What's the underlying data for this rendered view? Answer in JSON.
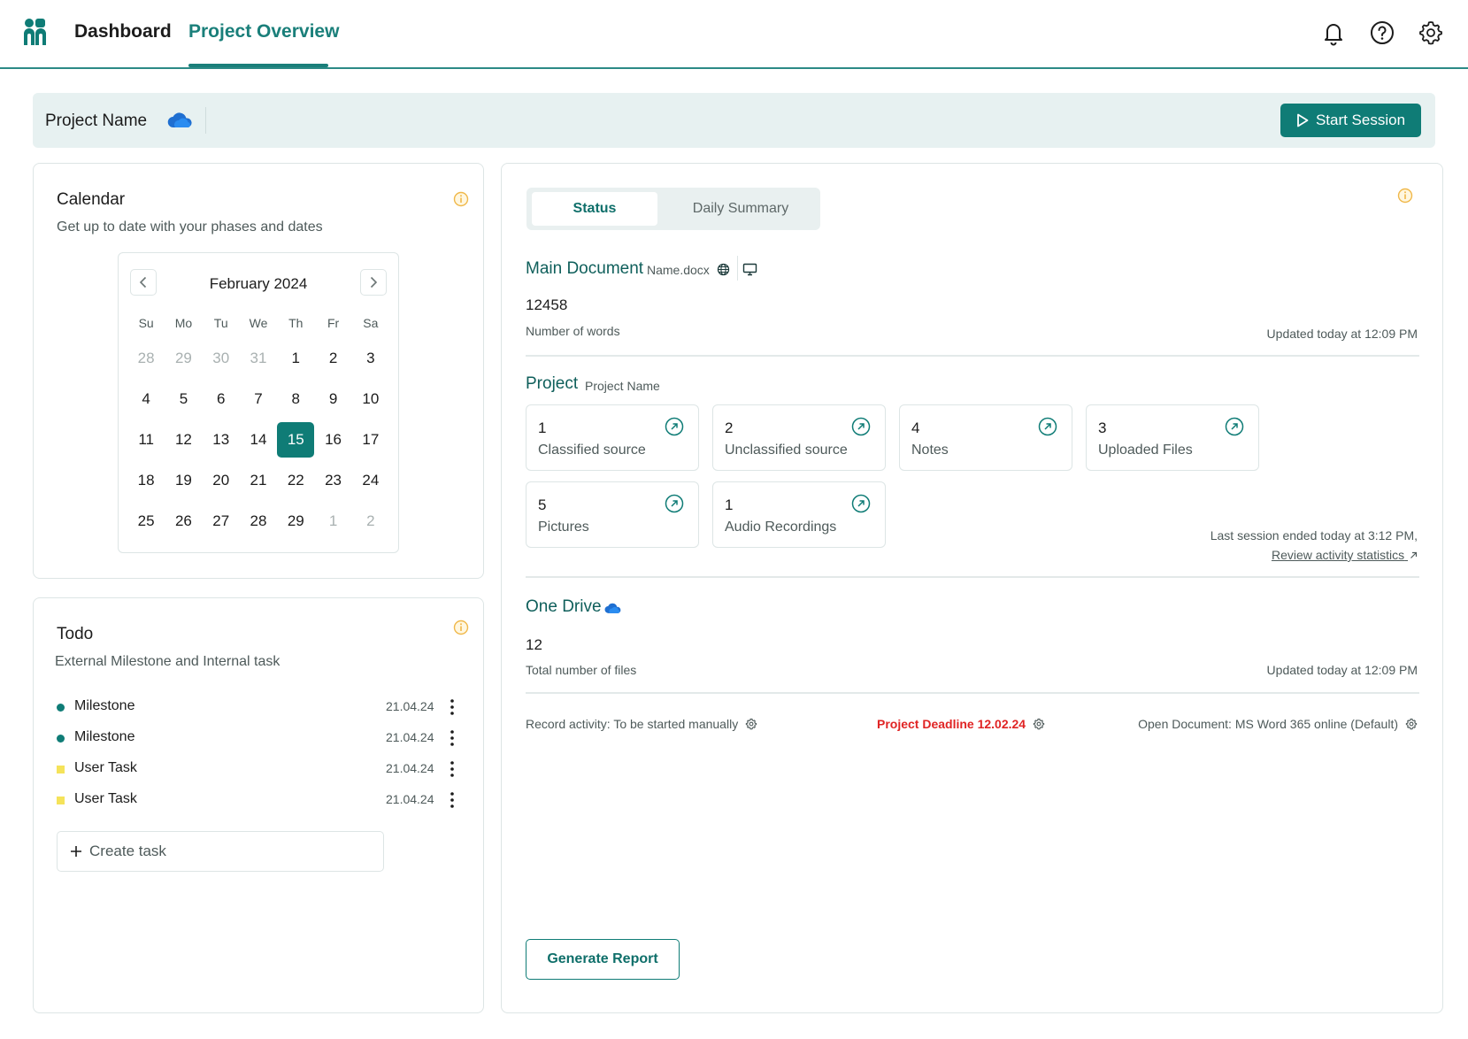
{
  "nav": {
    "logo_icon": "logo-people-icon",
    "tabs": [
      {
        "label": "Dashboard",
        "active": false
      },
      {
        "label": "Project Overview",
        "active": true
      }
    ],
    "icons": [
      "bell-icon",
      "help-icon",
      "gear-icon"
    ]
  },
  "project_bar": {
    "name": "Project Name",
    "cloud_icon": "onedrive-cloud-icon",
    "start_button": "Start Session"
  },
  "calendar": {
    "title": "Calendar",
    "subtitle": "Get up to date with your phases and dates",
    "month": "February 2024",
    "weekdays": [
      "Su",
      "Mo",
      "Tu",
      "We",
      "Th",
      "Fr",
      "Sa"
    ],
    "days": [
      {
        "d": "28",
        "m": true
      },
      {
        "d": "29",
        "m": true
      },
      {
        "d": "30",
        "m": true
      },
      {
        "d": "31",
        "m": true
      },
      {
        "d": "1"
      },
      {
        "d": "2"
      },
      {
        "d": "3"
      },
      {
        "d": "4"
      },
      {
        "d": "5"
      },
      {
        "d": "6"
      },
      {
        "d": "7"
      },
      {
        "d": "8"
      },
      {
        "d": "9"
      },
      {
        "d": "10"
      },
      {
        "d": "11"
      },
      {
        "d": "12"
      },
      {
        "d": "13"
      },
      {
        "d": "14"
      },
      {
        "d": "15",
        "sel": true
      },
      {
        "d": "16"
      },
      {
        "d": "17"
      },
      {
        "d": "18"
      },
      {
        "d": "19"
      },
      {
        "d": "20"
      },
      {
        "d": "21"
      },
      {
        "d": "22"
      },
      {
        "d": "23"
      },
      {
        "d": "24"
      },
      {
        "d": "25"
      },
      {
        "d": "26"
      },
      {
        "d": "27"
      },
      {
        "d": "28"
      },
      {
        "d": "29"
      },
      {
        "d": "1",
        "m": true
      },
      {
        "d": "2",
        "m": true
      }
    ]
  },
  "todo": {
    "title": "Todo",
    "subtitle": "External Milestone and Internal task",
    "items": [
      {
        "label": "Milestone",
        "date": "21.04.24",
        "kind": "milestone"
      },
      {
        "label": "Milestone",
        "date": "21.04.24",
        "kind": "milestone"
      },
      {
        "label": "User Task",
        "date": "21.04.24",
        "kind": "task"
      },
      {
        "label": "User Task",
        "date": "21.04.24",
        "kind": "task"
      }
    ],
    "create_placeholder": "Create task"
  },
  "status": {
    "tabs": [
      {
        "label": "Status",
        "active": true
      },
      {
        "label": "Daily Summary",
        "active": false
      }
    ],
    "main_document": {
      "title": "Main Document",
      "file": "Name.docx",
      "count": "12458",
      "count_label": "Number of words",
      "updated": "Updated today at 12:09 PM"
    },
    "project": {
      "title": "Project",
      "name": "Project Name",
      "stats": [
        {
          "num": "1",
          "label": "Classified source"
        },
        {
          "num": "2",
          "label": "Unclassified source"
        },
        {
          "num": "4",
          "label": "Notes"
        },
        {
          "num": "3",
          "label": "Uploaded Files"
        },
        {
          "num": "5",
          "label": "Pictures"
        },
        {
          "num": "1",
          "label": "Audio Recordings"
        }
      ],
      "last_session": "Last session ended today at 3:12 PM,",
      "review_link": "Review activity statistics"
    },
    "onedrive": {
      "title": "One Drive",
      "count": "12",
      "count_label": "Total number of files",
      "updated": "Updated today at 12:09 PM"
    },
    "footer": {
      "record": "Record activity: To be started manually",
      "deadline": "Project Deadline 12.02.24",
      "open_doc": "Open Document: MS Word 365 online (Default)"
    },
    "generate_button": "Generate Report"
  },
  "colors": {
    "accent": "#0f7c76",
    "milestone_dot": "#0f7c76",
    "task_square": "#f5e35a",
    "deadline": "#e02424",
    "info": "#f0b84a"
  }
}
